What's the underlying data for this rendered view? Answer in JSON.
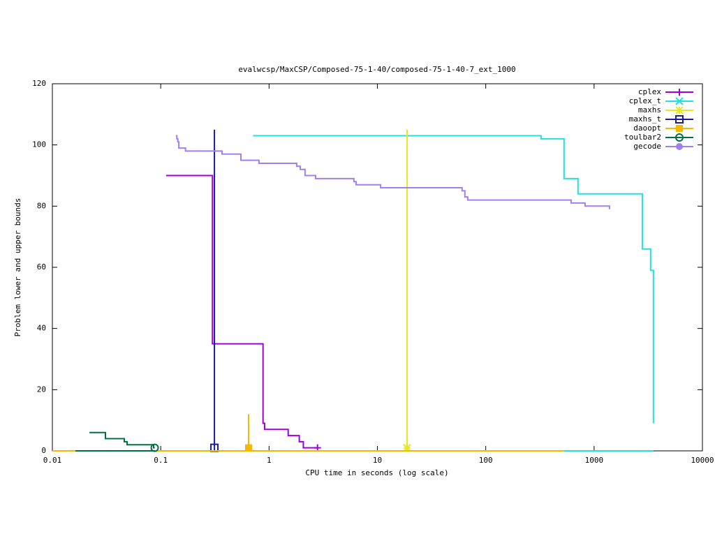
{
  "chart_data": {
    "type": "line",
    "log_x": true,
    "title": "evalwcsp/MaxCSP/Composed-75-1-40/composed-75-1-40-7_ext_1000",
    "x_label": "CPU time in seconds (log scale)",
    "y_label": "Problem lower and upper bounds",
    "xlim": [
      0.01,
      10000
    ],
    "xticks": [
      0.01,
      0.1,
      1,
      10,
      100,
      1000,
      10000
    ],
    "ylim": [
      0,
      120
    ],
    "yticks": [
      0,
      20,
      40,
      60,
      80,
      100,
      120
    ],
    "legend": "top-right",
    "series": [
      {
        "name": "cplex",
        "color": "#a000dd",
        "point_type": "plus",
        "x": [
          0.112,
          0.3,
          0.3,
          0.88,
          0.88,
          0.91,
          0.91,
          1.5,
          1.5,
          1.9,
          1.9,
          2.07,
          2.07,
          2.8
        ],
        "y": [
          90,
          90,
          35,
          35,
          9,
          9,
          7,
          7,
          5,
          5,
          3,
          3,
          1,
          1
        ],
        "points": {
          "x": [
            2.8
          ],
          "y": [
            1
          ]
        }
      },
      {
        "name": "cplex_t",
        "color": "#20e0e0",
        "point_type": "cross",
        "x": [
          0.71,
          324,
          324,
          528,
          528,
          711,
          711,
          2786,
          2786,
          3327,
          3327,
          3530,
          3530,
          null,
          528,
          3530
        ],
        "y": [
          103,
          103,
          102,
          102,
          89,
          89,
          84,
          84,
          66,
          66,
          59,
          59,
          9,
          null,
          0,
          0
        ],
        "points": {
          "x": [],
          "y": []
        }
      },
      {
        "name": "maxhs",
        "color": "#e8e820",
        "point_type": "star",
        "x": [
          18.8,
          18.8
        ],
        "y": [
          0,
          105
        ],
        "points": {
          "x": [
            18.8
          ],
          "y": [
            1
          ]
        }
      },
      {
        "name": "maxhs_t",
        "color": "#1a1aa0",
        "point_type": "box",
        "x": [
          0.313,
          0.313
        ],
        "y": [
          0,
          105
        ],
        "points": {
          "x": [
            0.313
          ],
          "y": [
            1
          ]
        }
      },
      {
        "name": "daoopt",
        "color": "#f5b800",
        "point_type": "filled-box",
        "x": [
          0.01,
          528,
          null,
          0.647,
          0.647
        ],
        "y": [
          0,
          0,
          null,
          0,
          12
        ],
        "points": {
          "x": [
            0.647
          ],
          "y": [
            1
          ]
        }
      },
      {
        "name": "toulbar2",
        "color": "#007040",
        "point_type": "circle",
        "x": [
          0.022,
          0.0309,
          0.0309,
          0.0461,
          0.0461,
          0.0489,
          0.0489,
          0.086,
          0.086,
          0.088,
          null,
          0.0163,
          0.088
        ],
        "y": [
          6,
          6,
          4,
          4,
          3,
          3,
          2,
          2,
          1,
          1,
          null,
          0,
          0
        ],
        "points": {
          "x": [
            0.088
          ],
          "y": [
            1
          ]
        }
      },
      {
        "name": "gecode",
        "color": "#a080f0",
        "point_type": "filled-circle",
        "x": [
          0.138,
          0.141,
          0.141,
          0.144,
          0.144,
          0.147,
          0.147,
          0.1695,
          0.1695,
          0.368,
          0.368,
          0.55,
          0.55,
          0.807,
          0.807,
          1.8,
          1.8,
          1.94,
          1.94,
          2.15,
          2.15,
          2.69,
          2.69,
          6.07,
          6.07,
          6.35,
          6.35,
          10.7,
          10.7,
          60.5,
          60.5,
          64.2,
          64.2,
          68.2,
          68.2,
          613,
          613,
          825,
          825,
          1387,
          1387
        ],
        "y": [
          103,
          103,
          102,
          102,
          101,
          101,
          99,
          99,
          98,
          98,
          97,
          97,
          95,
          95,
          94,
          94,
          93,
          93,
          92,
          92,
          90,
          90,
          89,
          89,
          88,
          88,
          87,
          87,
          86,
          86,
          85,
          85,
          83,
          83,
          82,
          82,
          81,
          81,
          80,
          80,
          79
        ],
        "points": {
          "x": [],
          "y": []
        }
      }
    ]
  }
}
